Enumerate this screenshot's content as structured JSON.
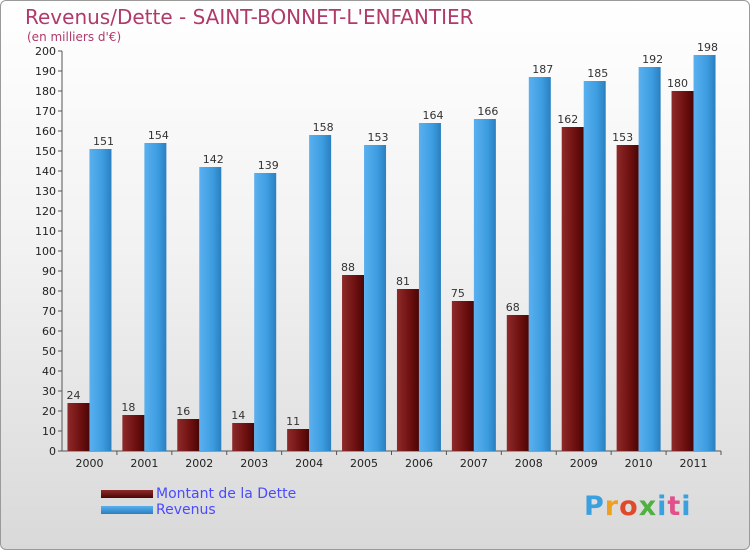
{
  "chart_data": {
    "type": "bar",
    "title": "Revenus/Dette - SAINT-BONNET-L'ENFANTIER",
    "subtitle": "(en milliers d'€)",
    "categories": [
      "2000",
      "2001",
      "2002",
      "2003",
      "2004",
      "2005",
      "2006",
      "2007",
      "2008",
      "2009",
      "2010",
      "2011"
    ],
    "series": [
      {
        "name": "Montant de la Dette",
        "color": "#7a1a1a",
        "values": [
          24,
          18,
          16,
          14,
          11,
          88,
          81,
          75,
          68,
          162,
          153,
          180
        ]
      },
      {
        "name": "Revenus",
        "color": "#3d9de0",
        "values": [
          151,
          154,
          142,
          139,
          158,
          153,
          164,
          166,
          187,
          185,
          192,
          198
        ]
      }
    ],
    "ylim": [
      0,
      200
    ],
    "yticks": [
      0,
      10,
      20,
      30,
      40,
      50,
      60,
      70,
      80,
      90,
      100,
      110,
      120,
      130,
      140,
      150,
      160,
      170,
      180,
      190,
      200
    ],
    "grid": false,
    "legend_position": "bottom-left"
  },
  "logo": {
    "letters": [
      "P",
      "r",
      "o",
      "x",
      "i",
      "t",
      "i"
    ],
    "text": "Proxiti"
  }
}
